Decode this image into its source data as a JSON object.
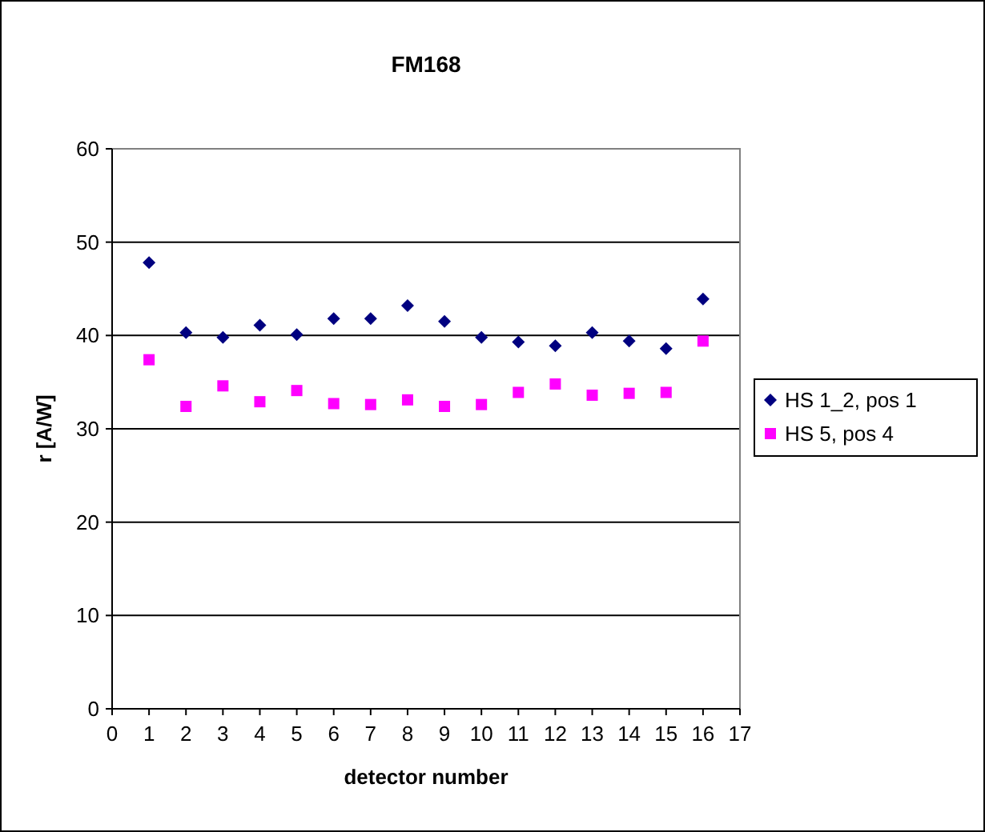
{
  "chart_data": {
    "type": "scatter",
    "title": "FM168",
    "xlabel": "detector number",
    "ylabel": "r [A/W]",
    "x": [
      1,
      2,
      3,
      4,
      5,
      6,
      7,
      8,
      9,
      10,
      11,
      12,
      13,
      14,
      15,
      16
    ],
    "series": [
      {
        "name": "HS 1_2, pos 1",
        "color": "#000080",
        "marker": "diamond",
        "values": [
          47.8,
          40.3,
          39.8,
          41.1,
          40.1,
          41.8,
          41.8,
          43.2,
          41.5,
          39.8,
          39.3,
          38.9,
          40.3,
          39.4,
          38.6,
          43.9
        ]
      },
      {
        "name": "HS 5, pos 4",
        "color": "#ff00ff",
        "marker": "square",
        "values": [
          37.4,
          32.4,
          34.6,
          32.9,
          34.1,
          32.7,
          32.6,
          33.1,
          32.4,
          32.6,
          33.9,
          34.8,
          33.6,
          33.8,
          33.9,
          39.4
        ]
      }
    ],
    "xlim": [
      0,
      17
    ],
    "xticks": [
      0,
      1,
      2,
      3,
      4,
      5,
      6,
      7,
      8,
      9,
      10,
      11,
      12,
      13,
      14,
      15,
      16,
      17
    ],
    "ylim": [
      0,
      60
    ],
    "yticks": [
      0,
      10,
      20,
      30,
      40,
      50,
      60
    ],
    "grid": "y",
    "legend": "right"
  }
}
